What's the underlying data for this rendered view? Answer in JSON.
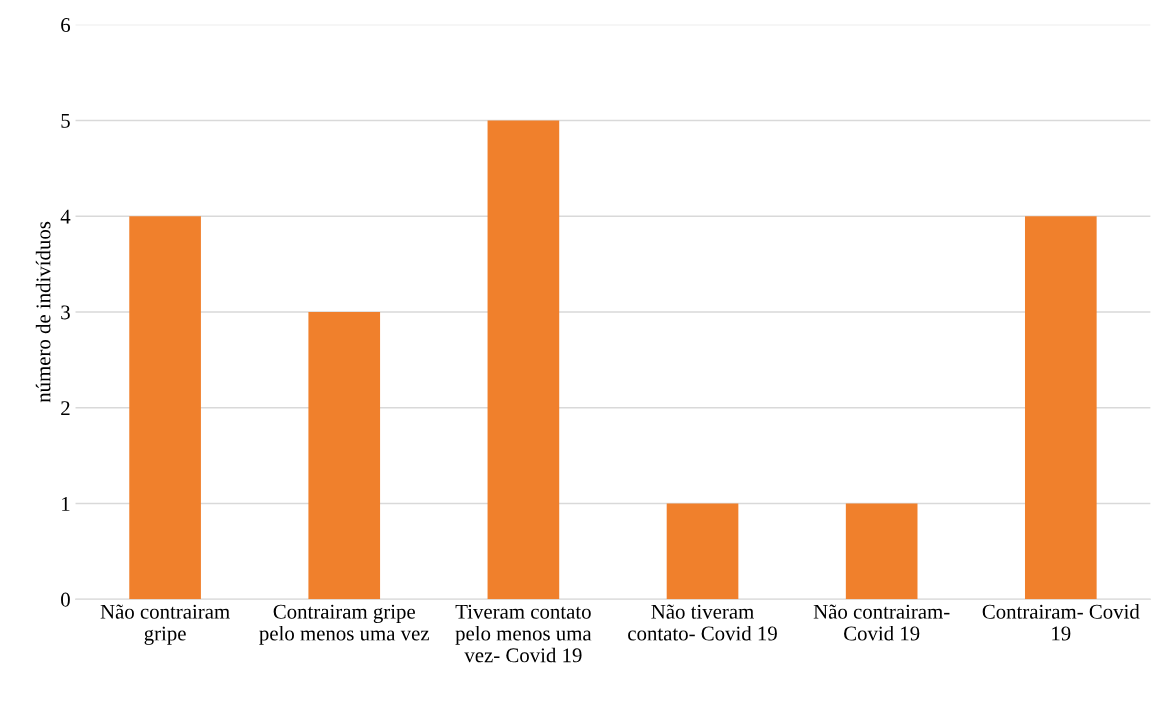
{
  "chart_data": {
    "type": "bar",
    "ylabel": "número de indivíduos",
    "categories": [
      "Não contrairam gripe",
      "Contrairam gripe pelo menos uma vez",
      "Tiveram contato pelo menos uma vez- Covid 19",
      "Não tiveram contato- Covid 19",
      "Não contrairam- Covid 19",
      "Contrairam- Covid 19"
    ],
    "values": [
      4,
      3,
      5,
      1,
      1,
      4
    ],
    "color": "#f0802c",
    "ylim": [
      0,
      6
    ],
    "yticks": [
      0,
      1,
      2,
      3,
      4,
      5,
      6
    ],
    "grid": "y"
  }
}
